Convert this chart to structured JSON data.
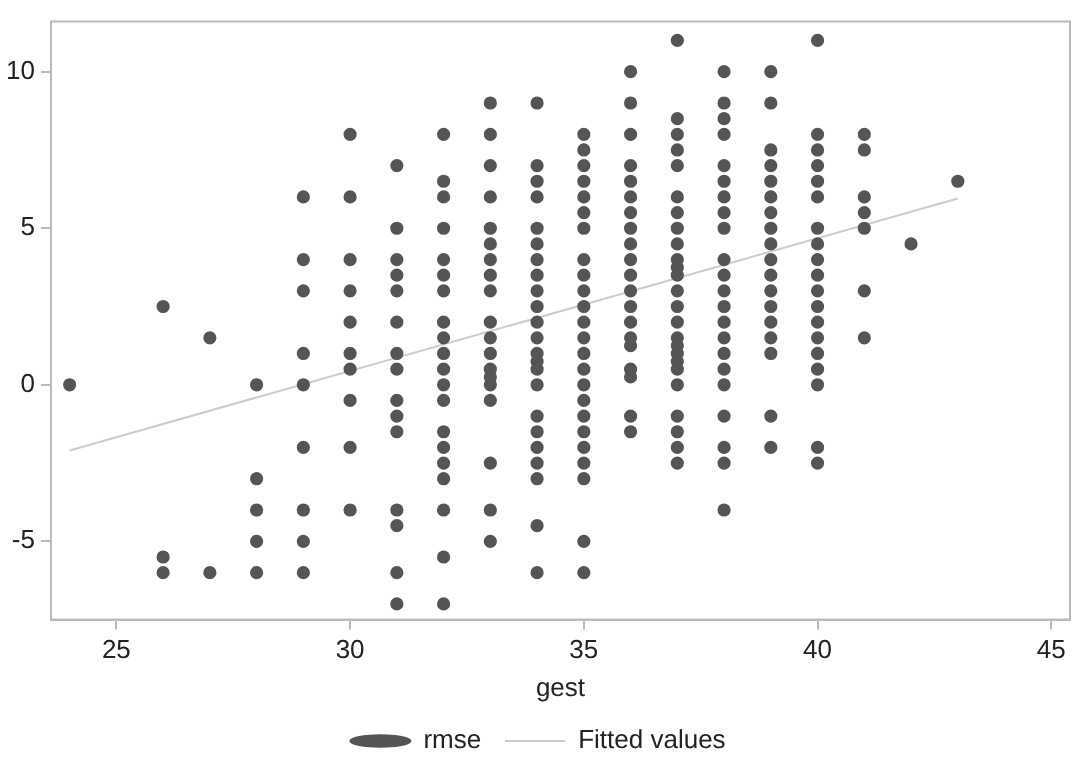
{
  "chart_data": {
    "type": "scatter",
    "xlabel": "gest",
    "xlim": [
      23.6,
      45.4
    ],
    "ylim": [
      -7.5,
      11.6
    ],
    "xticks": [
      25,
      30,
      35,
      40,
      45
    ],
    "yticks": [
      -5,
      0,
      5,
      10
    ],
    "grid": false,
    "legend": "bottom",
    "series": [
      {
        "name": "rmse",
        "marker": "circle",
        "color": "#555555",
        "x": [
          24,
          26,
          26,
          26,
          27,
          27,
          28,
          28,
          28,
          28,
          28,
          29,
          29,
          29,
          29,
          29,
          29,
          29,
          29,
          29,
          30,
          30,
          30,
          30,
          30,
          30,
          30,
          30,
          30,
          30,
          31,
          31,
          31,
          31,
          31,
          31,
          31,
          31,
          31,
          31,
          31,
          31,
          31,
          31,
          31,
          32,
          32,
          32,
          32,
          32,
          32,
          32,
          32,
          32,
          32,
          32,
          32,
          32,
          32,
          32,
          32,
          32,
          32,
          32,
          32,
          33,
          33,
          33,
          33,
          33,
          33,
          33,
          33,
          33,
          33,
          33,
          33,
          33,
          33,
          33,
          33,
          33,
          33,
          33,
          34,
          34,
          34,
          34,
          34,
          34,
          34,
          34,
          34,
          34,
          34,
          34,
          34,
          34,
          34,
          34,
          34,
          34,
          34,
          34,
          34,
          34,
          34,
          35,
          35,
          35,
          35,
          35,
          35,
          35,
          35,
          35,
          35,
          35,
          35,
          35,
          35,
          35,
          35,
          35,
          35,
          35,
          35,
          35,
          35,
          35,
          35,
          36,
          36,
          36,
          36,
          36,
          36,
          36,
          36,
          36,
          36,
          36,
          36,
          36,
          36,
          36,
          36,
          36,
          36,
          36,
          36,
          37,
          37,
          37,
          37,
          37,
          37,
          37,
          37,
          37,
          37,
          37,
          37,
          37,
          37,
          37,
          37,
          37,
          37,
          37,
          37,
          37,
          37,
          37,
          37,
          37,
          38,
          38,
          38,
          38,
          38,
          38,
          38,
          38,
          38,
          38,
          38,
          38,
          38,
          38,
          38,
          38,
          38,
          38,
          38,
          38,
          38,
          38,
          39,
          39,
          39,
          39,
          39,
          39,
          39,
          39,
          39,
          39,
          39,
          39,
          39,
          39,
          39,
          39,
          39,
          39,
          40,
          40,
          40,
          40,
          40,
          40,
          40,
          40,
          40,
          40,
          40,
          40,
          40,
          40,
          40,
          40,
          40,
          40,
          40,
          41,
          41,
          41,
          41,
          41,
          41,
          41,
          42,
          43
        ],
        "values": [
          0,
          2.5,
          -5.5,
          -6,
          1.5,
          -6,
          0,
          -3,
          -4,
          -5,
          -6,
          6,
          4,
          3,
          1,
          0,
          -2,
          -4,
          -5,
          -6,
          8,
          6,
          4,
          3,
          2,
          1,
          0.5,
          -0.5,
          -2,
          -4,
          7,
          5,
          4,
          3.5,
          3,
          2,
          1,
          0.5,
          -0.5,
          -1,
          -1.5,
          -4,
          -4.5,
          -6,
          -7,
          8,
          6.5,
          6,
          5,
          4,
          3.5,
          3,
          2,
          1.5,
          1,
          0.5,
          0,
          -0.5,
          -1.5,
          -2,
          -2.5,
          -3,
          -4,
          -5.5,
          -7,
          9,
          8,
          7,
          6,
          5,
          4.5,
          4,
          3.5,
          3,
          2,
          1.5,
          1,
          0.5,
          0.25,
          0,
          -0.5,
          -2.5,
          -4,
          -5,
          9,
          7,
          6.5,
          6,
          5,
          4.5,
          4,
          3.5,
          3,
          2.5,
          2,
          1.5,
          1,
          0.75,
          0.5,
          0,
          -1,
          -1.5,
          -2,
          -2.5,
          -3,
          -4.5,
          -6,
          8,
          7.5,
          7,
          6.5,
          6,
          5.5,
          5,
          4,
          3.5,
          3,
          2.5,
          2,
          1.5,
          1,
          0.5,
          0,
          -0.5,
          -1,
          -1.5,
          -2,
          -2.5,
          -3,
          -5,
          -6,
          10,
          9,
          8,
          7,
          6.5,
          6,
          5.5,
          5,
          4.5,
          4,
          3.5,
          3,
          2.5,
          2,
          1.5,
          1.25,
          0.5,
          0.25,
          -1,
          -1.5,
          11,
          8.5,
          8,
          7.5,
          7,
          6,
          5.5,
          5,
          4.5,
          4,
          3.75,
          3.5,
          3,
          2.5,
          2,
          1.5,
          1.25,
          1,
          0.75,
          0.5,
          0,
          -1,
          -1.5,
          -2,
          -2.5,
          10,
          9,
          8.5,
          8,
          7,
          6.5,
          6,
          5.5,
          5,
          4,
          3.5,
          3,
          2.5,
          2,
          1.5,
          1,
          0.5,
          0,
          -1,
          -2,
          -2.5,
          -4,
          10,
          9,
          7.5,
          7,
          6.5,
          6,
          5.5,
          5,
          4.5,
          4,
          3.5,
          3,
          2.5,
          2,
          1.5,
          1,
          -1,
          -2,
          11,
          8,
          7.5,
          7,
          6.5,
          6,
          5,
          4.5,
          4,
          3.5,
          3,
          2.5,
          2,
          1.5,
          1,
          0.5,
          0,
          -2,
          -2.5,
          8,
          7.5,
          6,
          5.5,
          5,
          3,
          1.5,
          4.5,
          6.5
        ]
      },
      {
        "name": "Fitted values",
        "type": "line",
        "marker": "none",
        "color": "#cccccc",
        "x": [
          24,
          43
        ],
        "values": [
          -2.1,
          5.95
        ]
      }
    ]
  }
}
